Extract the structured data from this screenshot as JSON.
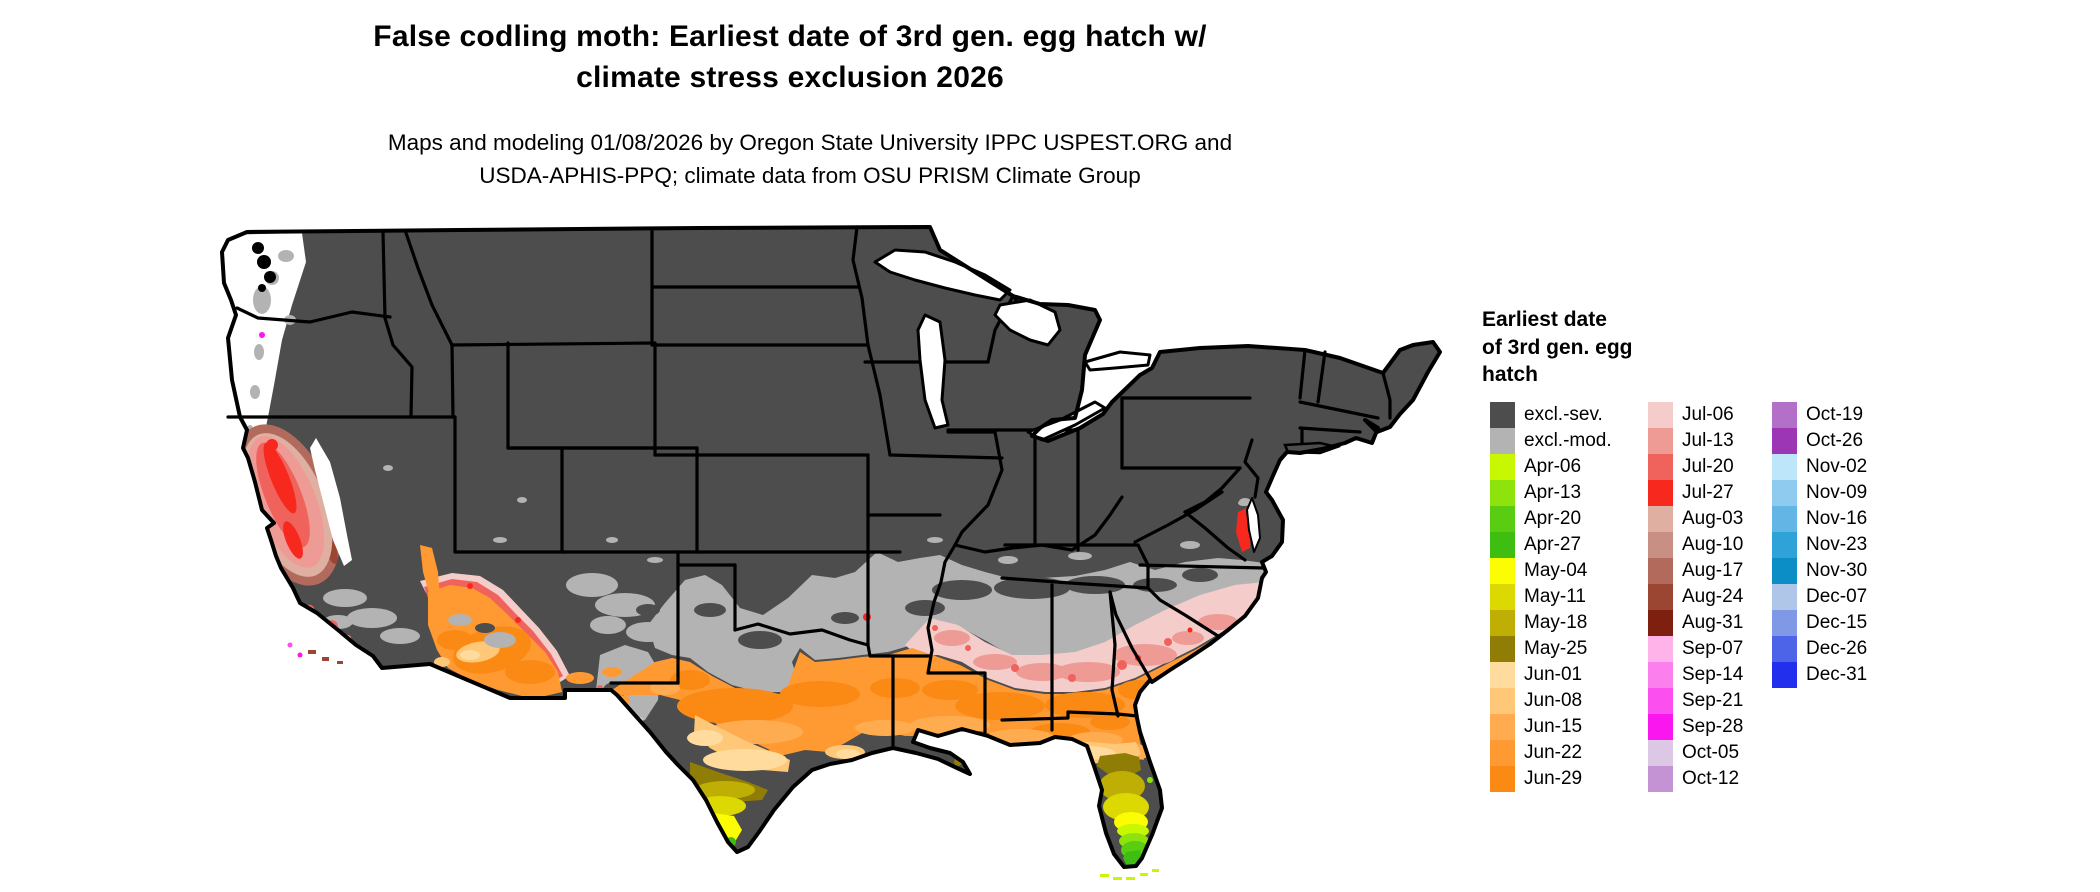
{
  "header": {
    "title_line1": "False codling moth: Earliest date of 3rd gen. egg hatch w/",
    "title_line2": "climate stress exclusion 2026",
    "subtitle_line1": "Maps and modeling 01/08/2026 by Oregon State University IPPC USPEST.ORG and",
    "subtitle_line2": "USDA-APHIS-PPQ; climate data from OSU PRISM Climate Group"
  },
  "legend": {
    "title_lines": [
      "Earliest date",
      "of 3rd gen. egg",
      "hatch"
    ],
    "columns": [
      {
        "entries": [
          {
            "label": "excl.-sev.",
            "color": "#4D4D4D"
          },
          {
            "label": "excl.-mod.",
            "color": "#B3B3B3"
          },
          {
            "label": "Apr-06",
            "color": "#C8F702"
          },
          {
            "label": "Apr-13",
            "color": "#8FE30C"
          },
          {
            "label": "Apr-20",
            "color": "#5ACD12"
          },
          {
            "label": "Apr-27",
            "color": "#3DBE10"
          },
          {
            "label": "May-04",
            "color": "#FCFC02"
          },
          {
            "label": "May-11",
            "color": "#DCD801"
          },
          {
            "label": "May-18",
            "color": "#BFAE04"
          },
          {
            "label": "May-25",
            "color": "#8F7D05"
          },
          {
            "label": "Jun-01",
            "color": "#FFDC9E"
          },
          {
            "label": "Jun-08",
            "color": "#FFC878"
          },
          {
            "label": "Jun-15",
            "color": "#FFAC50"
          },
          {
            "label": "Jun-22",
            "color": "#FF9A33"
          },
          {
            "label": "Jun-29",
            "color": "#FB8A14"
          }
        ]
      },
      {
        "entries": [
          {
            "label": "Jul-06",
            "color": "#F4CCCA"
          },
          {
            "label": "Jul-13",
            "color": "#EE9B96"
          },
          {
            "label": "Jul-20",
            "color": "#F0635C"
          },
          {
            "label": "Jul-27",
            "color": "#F7291F"
          },
          {
            "label": "Aug-03",
            "color": "#DFB0A2"
          },
          {
            "label": "Aug-10",
            "color": "#C89084"
          },
          {
            "label": "Aug-17",
            "color": "#B26A5C"
          },
          {
            "label": "Aug-24",
            "color": "#9A4632"
          },
          {
            "label": "Aug-31",
            "color": "#7E2010"
          },
          {
            "label": "Sep-07",
            "color": "#FFB3E8"
          },
          {
            "label": "Sep-14",
            "color": "#FB80EE"
          },
          {
            "label": "Sep-21",
            "color": "#FB4FF0"
          },
          {
            "label": "Sep-28",
            "color": "#FA16EE"
          },
          {
            "label": "Oct-05",
            "color": "#DCC8E4"
          },
          {
            "label": "Oct-12",
            "color": "#C393D4"
          }
        ]
      },
      {
        "entries": [
          {
            "label": "Oct-19",
            "color": "#B270C8"
          },
          {
            "label": "Oct-26",
            "color": "#9C36B4"
          },
          {
            "label": "Nov-02",
            "color": "#BEE6FA"
          },
          {
            "label": "Nov-09",
            "color": "#8FCBEE"
          },
          {
            "label": "Nov-16",
            "color": "#62B5E4"
          },
          {
            "label": "Nov-23",
            "color": "#2FA3D8"
          },
          {
            "label": "Nov-30",
            "color": "#0B8DC6"
          },
          {
            "label": "Dec-07",
            "color": "#AFC6E8"
          },
          {
            "label": "Dec-15",
            "color": "#8099E6"
          },
          {
            "label": "Dec-26",
            "color": "#4E64E8"
          },
          {
            "label": "Dec-31",
            "color": "#2230EE"
          }
        ]
      }
    ]
  },
  "map": {
    "region": "Continental United States",
    "zones": [
      {
        "zone": "climate-exclusion-severe",
        "color": "#4D4D4D"
      },
      {
        "zone": "climate-exclusion-moderate",
        "color": "#B3B3B3"
      },
      {
        "zone": "pacific-northwest-no-hatch",
        "color": "#FFFFFF"
      },
      {
        "zone": "california-central-valley-july-hatch",
        "color": "#F7291F"
      },
      {
        "zone": "california-foothills-august-hatch",
        "color": "#B26A5C"
      },
      {
        "zone": "pacific-coast-september-specks",
        "color": "#FB4FF0"
      },
      {
        "zone": "southeast-early-july-band",
        "color": "#F4CCCA"
      },
      {
        "zone": "gulf-south-june-band",
        "color": "#FF9A33"
      },
      {
        "zone": "south-texas-may-band",
        "color": "#DCD801"
      },
      {
        "zone": "south-florida-april-hatch",
        "color": "#5ACD12"
      },
      {
        "zone": "chesapeake-late-july-strip",
        "color": "#F7291F"
      }
    ]
  }
}
